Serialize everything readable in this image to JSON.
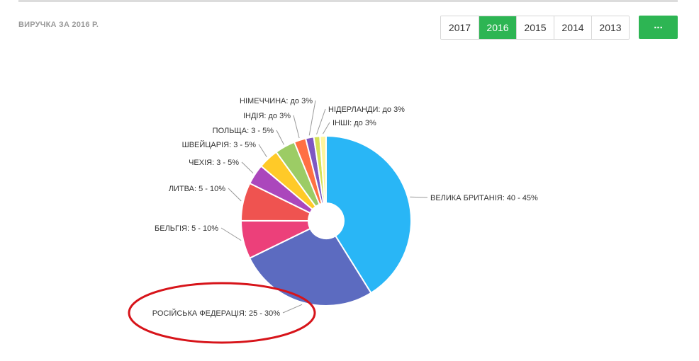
{
  "header": {
    "title": "ВИРУЧКА ЗА 2016 Р.",
    "years": [
      "2017",
      "2016",
      "2015",
      "2014",
      "2013"
    ],
    "active_year": "2016",
    "more_label": "...",
    "accent_color": "#2db553"
  },
  "chart_data": {
    "type": "pie",
    "style": "donut",
    "categories": [
      "ВЕЛИКА БРИТАНІЯ: 40 - 45%",
      "РОСІЙСЬКА ФЕДЕРАЦІЯ: 25 - 30%",
      "БЕЛЬГІЯ: 5 - 10%",
      "ЛИТВА: 5 - 10%",
      "ЧЕХІЯ: 3 - 5%",
      "ШВЕЙЦАРІЯ: 3 - 5%",
      "ПОЛЬЩА: 3 - 5%",
      "ІНДІЯ: до 3%",
      "НІМЕЧЧИНА: до 3%",
      "НІДЕРЛАНДИ: до 3%",
      "ІНШІ: до 3%"
    ],
    "values": [
      42.5,
      27.5,
      7.5,
      7.5,
      4,
      4,
      4,
      2.3,
      1.6,
      1.2,
      1.2
    ],
    "colors": [
      "#29b6f6",
      "#5c6bc0",
      "#ec407a",
      "#ef5350",
      "#ab47bc",
      "#ffca28",
      "#9ccc65",
      "#ff7043",
      "#7e57c2",
      "#d4e157",
      "#fff59d"
    ],
    "highlight": "РОСІЙСЬКА ФЕДЕРАЦІЯ: 25 - 30%",
    "highlight_color": "#d7141a"
  }
}
